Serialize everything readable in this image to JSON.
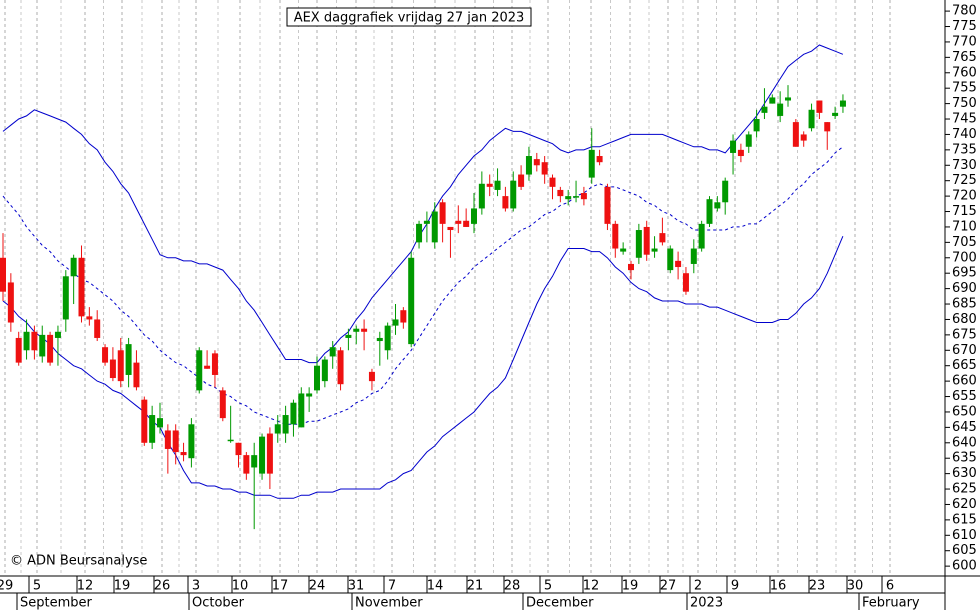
{
  "chart_data": {
    "type": "candlestick",
    "title": "AEX daggrafiek vrijdag 27 jan 2023",
    "copyright": "© ADN Beursanalyse",
    "x_labels": [
      "29",
      "5",
      "12",
      "19",
      "26",
      "3",
      "10",
      "17",
      "24",
      "31",
      "7",
      "14",
      "21",
      "28",
      "5",
      "12",
      "19",
      "27",
      "2",
      "9",
      "16",
      "23",
      "30",
      "6"
    ],
    "month_labels": [
      "September",
      "October",
      "November",
      "December",
      "2023",
      "February"
    ],
    "ylim": [
      596.8,
      783.6
    ],
    "yticks": [
      600,
      605,
      610,
      615,
      620,
      625,
      630,
      635,
      640,
      645,
      650,
      655,
      660,
      665,
      670,
      675,
      680,
      685,
      690,
      695,
      700,
      705,
      710,
      715,
      720,
      725,
      730,
      735,
      740,
      745,
      750,
      755,
      760,
      765,
      770,
      775,
      780
    ],
    "up_color": "#009900",
    "down_color": "#ee1111",
    "open": [
      700,
      692,
      674,
      670,
      676,
      668,
      675,
      674,
      680,
      694,
      700,
      681,
      680,
      671,
      667,
      670,
      662,
      666,
      654,
      640,
      645,
      644,
      644,
      637,
      635,
      657,
      665,
      669,
      657,
      641,
      640,
      636,
      632,
      630,
      643,
      643,
      643,
      646,
      645,
      655,
      657,
      660,
      668,
      670,
      674,
      676,
      677,
      663,
      673,
      670,
      678,
      683,
      672,
      705,
      711,
      705,
      718,
      710,
      712,
      712,
      711,
      716,
      724,
      722,
      720,
      716,
      727,
      727,
      732,
      731,
      726,
      722,
      719,
      720,
      721,
      726,
      733,
      723,
      711,
      702,
      698,
      700,
      710,
      702,
      708,
      696,
      699,
      695,
      698,
      703,
      711,
      716,
      718,
      734,
      735,
      736,
      741,
      747,
      750,
      746,
      751,
      744,
      740,
      742,
      751,
      744,
      746,
      749
    ],
    "high": [
      708,
      695,
      676,
      680,
      678,
      678,
      676,
      678,
      696,
      701,
      704,
      684,
      683,
      672,
      671,
      674,
      674,
      670,
      655,
      652,
      653,
      646,
      646,
      640,
      648,
      671,
      670,
      670,
      658,
      652,
      640,
      637,
      640,
      643,
      645,
      649,
      652,
      654,
      658,
      658,
      668,
      668,
      673,
      671,
      677,
      678,
      680,
      664,
      676,
      679,
      685,
      684,
      702,
      712,
      715,
      718,
      719,
      710,
      717,
      716,
      721,
      728,
      727,
      729,
      723,
      728,
      730,
      736,
      734,
      733,
      727,
      723,
      722,
      725,
      723,
      742,
      735,
      724,
      712,
      705,
      699,
      711,
      712,
      707,
      713,
      704,
      702,
      697,
      706,
      712,
      720,
      720,
      726,
      740,
      737,
      741,
      748,
      755,
      753,
      754,
      756,
      745,
      741,
      750,
      751,
      744,
      749,
      753
    ],
    "low": [
      686,
      676,
      665,
      667,
      667,
      666,
      665,
      665,
      676,
      685,
      679,
      678,
      673,
      665,
      660,
      658,
      658,
      657,
      639,
      638,
      643,
      630,
      633,
      634,
      632,
      656,
      664,
      658,
      647,
      640,
      632,
      628,
      612,
      628,
      625,
      640,
      640,
      642,
      645,
      650,
      656,
      658,
      664,
      657,
      670,
      672,
      670,
      657,
      665,
      667,
      675,
      677,
      671,
      703,
      705,
      703,
      705,
      700,
      708,
      710,
      708,
      714,
      720,
      720,
      715,
      715,
      722,
      725,
      728,
      724,
      719,
      718,
      717,
      718,
      717,
      724,
      730,
      709,
      700,
      701,
      693,
      698,
      699,
      700,
      704,
      695,
      693,
      688,
      695,
      702,
      710,
      715,
      714,
      727,
      731,
      734,
      739,
      745,
      750,
      744,
      749,
      736,
      736,
      741,
      745,
      735,
      745,
      747
    ],
    "close": [
      689,
      679,
      666,
      676,
      670,
      675,
      666,
      676,
      694,
      700,
      681,
      680,
      674,
      666,
      661,
      660,
      672,
      658,
      640,
      649,
      648,
      638,
      637,
      636,
      646,
      670,
      664,
      662,
      648,
      641,
      636,
      630,
      636,
      642,
      630,
      646,
      649,
      653,
      656,
      656,
      665,
      667,
      671,
      659,
      675,
      677,
      676,
      660,
      674,
      678,
      680,
      679,
      700,
      711,
      712,
      715,
      711,
      709,
      711,
      710,
      716,
      724,
      723,
      725,
      716,
      725,
      723,
      733,
      730,
      727,
      723,
      720,
      720,
      720,
      719,
      735,
      731,
      711,
      703,
      703,
      696,
      709,
      701,
      703,
      705,
      703,
      697,
      689,
      703,
      711,
      719,
      718,
      725,
      738,
      733,
      740,
      745,
      749,
      752,
      750,
      752,
      736,
      738,
      748,
      747,
      741,
      747,
      751
    ],
    "bands": [
      {
        "name": "upper",
        "color": "#0000cc",
        "dashed": false,
        "values": [
          741,
          743,
          745,
          746,
          748,
          747,
          746,
          745,
          744,
          742,
          740,
          737,
          735,
          731,
          728,
          724,
          721,
          716,
          711,
          706,
          701,
          700,
          700,
          699,
          699,
          698,
          698,
          697,
          696,
          693,
          690,
          686,
          683,
          679,
          675,
          671,
          667,
          667,
          667,
          666,
          666,
          669,
          671,
          674,
          676,
          680,
          683,
          687,
          690,
          693,
          696,
          699,
          702,
          707,
          711,
          716,
          720,
          723,
          727,
          730,
          733,
          735,
          738,
          740,
          742,
          741,
          741,
          740,
          739,
          738,
          737,
          735,
          734,
          735,
          735,
          736,
          736,
          737,
          738,
          739,
          740,
          740,
          740,
          740,
          740,
          739,
          738,
          737,
          736,
          736,
          735,
          735,
          734,
          737,
          740,
          743,
          746,
          750,
          754,
          758,
          762,
          764,
          766,
          767,
          769,
          768,
          767,
          766
        ]
      },
      {
        "name": "middle",
        "color": "#0000cc",
        "dashed": true,
        "values": [
          720,
          717,
          714,
          710,
          707,
          704,
          702,
          699,
          697,
          695,
          693,
          692,
          690,
          688,
          686,
          683,
          681,
          678,
          675,
          673,
          670,
          668,
          666,
          665,
          663,
          661,
          659,
          658,
          656,
          655,
          653,
          652,
          650,
          649,
          648,
          647,
          646,
          646,
          646,
          647,
          647,
          648,
          649,
          650,
          651,
          653,
          654,
          656,
          657,
          660,
          664,
          667,
          670,
          674,
          678,
          682,
          686,
          689,
          692,
          694,
          697,
          699,
          701,
          703,
          705,
          707,
          709,
          710,
          712,
          714,
          715,
          717,
          718,
          720,
          721,
          723,
          724,
          723,
          723,
          722,
          721,
          720,
          718,
          717,
          715,
          714,
          712,
          711,
          709,
          709,
          709,
          709,
          709,
          710,
          710,
          711,
          711,
          713,
          715,
          717,
          719,
          722,
          724,
          727,
          729,
          731,
          734,
          736
        ]
      },
      {
        "name": "lower",
        "color": "#0000cc",
        "dashed": false,
        "values": [
          686,
          684,
          681,
          679,
          676,
          674,
          672,
          669,
          667,
          665,
          664,
          662,
          660,
          659,
          657,
          656,
          654,
          652,
          650,
          647,
          645,
          640,
          636,
          631,
          627,
          627,
          626,
          626,
          625,
          625,
          624,
          624,
          623,
          623,
          623,
          622,
          622,
          622,
          623,
          623,
          624,
          624,
          624,
          625,
          625,
          625,
          625,
          625,
          625,
          627,
          628,
          630,
          631,
          634,
          637,
          639,
          642,
          644,
          646,
          648,
          650,
          653,
          656,
          658,
          661,
          667,
          673,
          679,
          685,
          690,
          694,
          699,
          703,
          703,
          703,
          702,
          702,
          700,
          697,
          695,
          692,
          690,
          689,
          687,
          686,
          686,
          686,
          685,
          685,
          685,
          684,
          684,
          683,
          682,
          681,
          680,
          679,
          679,
          679,
          680,
          680,
          682,
          685,
          687,
          690,
          695,
          701,
          707
        ]
      }
    ]
  }
}
